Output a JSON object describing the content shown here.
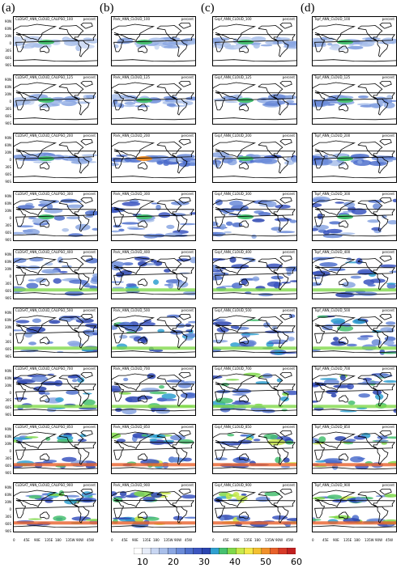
{
  "columns": [
    "(a)",
    "(b)",
    "(c)",
    "(d)"
  ],
  "unit": "percent",
  "rows": [
    [
      "CLDSAT_ANN_CLOUD_CALIPSO_100",
      "Park_ANN_CLOUD_100",
      "Gspf_ANN_CLOUD_100",
      "Tspf_ANN_CLOUD_100"
    ],
    [
      "CLDSAT_ANN_CLOUD_CALIPSO_125",
      "Park_ANN_CLOUD_125",
      "Gspf_ANN_CLOUD_125",
      "Tspf_ANN_CLOUD_125"
    ],
    [
      "CLDSAT_ANN_CLOUD_CALIPSO_200",
      "Park_ANN_CLOUD_200",
      "Gspf_ANN_CLOUD_200",
      "Tspf_ANN_CLOUD_200"
    ],
    [
      "CLDSAT_ANN_CLOUD_CALIPSO_300",
      "Park_ANN_CLOUD_300",
      "Gspf_ANN_CLOUD_300",
      "Tspf_ANN_CLOUD_300"
    ],
    [
      "CLDSAT_ANN_CLOUD_CALIPSO_400",
      "Park_ANN_CLOUD_400",
      "Gspf_ANN_CLOUD_400",
      "Tspf_ANN_CLOUD_400"
    ],
    [
      "CLDSAT_ANN_CLOUD_CALIPSO_500",
      "Park_ANN_CLOUD_500",
      "Gspf_ANN_CLOUD_500",
      "Tspf_ANN_CLOUD_500"
    ],
    [
      "CLDSAT_ANN_CLOUD_CALIPSO_700",
      "Park_ANN_CLOUD_700",
      "Gspf_ANN_CLOUD_700",
      "Tspf_ANN_CLOUD_700"
    ],
    [
      "CLDSAT_ANN_CLOUD_CALIPSO_850",
      "Park_ANN_CLOUD_850",
      "Gspf_ANN_CLOUD_850",
      "Tspf_ANN_CLOUD_850"
    ],
    [
      "CLDSAT_ANN_CLOUD_CALIPSO_900",
      "Park_ANN_CLOUD_900",
      "Gspf_ANN_CLOUD_900",
      "Tspf_ANN_CLOUD_900"
    ]
  ],
  "lat_labels": [
    "90N",
    "60N",
    "30N",
    "0",
    "30S",
    "60S",
    "90S"
  ],
  "lon_labels": [
    "0",
    "45E",
    "90E",
    "135E",
    "180",
    "135W",
    "90W",
    "45W"
  ],
  "colorbar": {
    "labels": [
      "10",
      "20",
      "30",
      "40",
      "50",
      "60"
    ],
    "colors": [
      "#ffffff",
      "#e6ecf8",
      "#c8d6f2",
      "#a9bfea",
      "#8aa6e2",
      "#6b8bd8",
      "#4f70cc",
      "#3b55c0",
      "#2a44b0",
      "#2fa0d0",
      "#46c070",
      "#7fd84a",
      "#c8e84a",
      "#f4e84a",
      "#f4c030",
      "#f0902a",
      "#e8602a",
      "#d83a28",
      "#c02020"
    ]
  }
}
